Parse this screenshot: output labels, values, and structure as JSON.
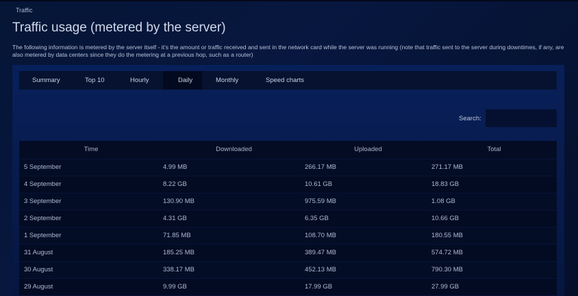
{
  "breadcrumb": "Traffic",
  "title": "Traffic usage (metered by the server)",
  "description": "The following information is metered by the server itself - it's the amount or traffic received and sent in the network card while the server was running (note that traffic sent to the server during downtimes, if any, are also metered by data centers since they do the metering at a previous hop, such as a router)",
  "tabs": [
    {
      "label": "Summary"
    },
    {
      "label": "Top 10"
    },
    {
      "label": "Hourly"
    },
    {
      "label": "Daily",
      "active": true
    },
    {
      "label": "Monthly"
    },
    {
      "label": "Speed charts"
    }
  ],
  "search": {
    "label": "Search:",
    "value": ""
  },
  "table": {
    "columns": [
      "Time",
      "Downloaded",
      "Uploaded",
      "Total"
    ],
    "rows": [
      [
        "5 September",
        "4.99 MB",
        "266.17 MB",
        "271.17 MB"
      ],
      [
        "4 September",
        "8.22 GB",
        "10.61 GB",
        "18.83 GB"
      ],
      [
        "3 September",
        "130.90 MB",
        "975.59 MB",
        "1.08 GB"
      ],
      [
        "2 September",
        "4.31 GB",
        "6.35 GB",
        "10.66 GB"
      ],
      [
        "1 September",
        "71.85 MB",
        "108.70 MB",
        "180.55 MB"
      ],
      [
        "31 August",
        "185.25 MB",
        "389.47 MB",
        "574.72 MB"
      ],
      [
        "30 August",
        "338.17 MB",
        "452.13 MB",
        "790.30 MB"
      ],
      [
        "29 August",
        "9.99 GB",
        "17.99 GB",
        "27.99 GB"
      ]
    ]
  }
}
